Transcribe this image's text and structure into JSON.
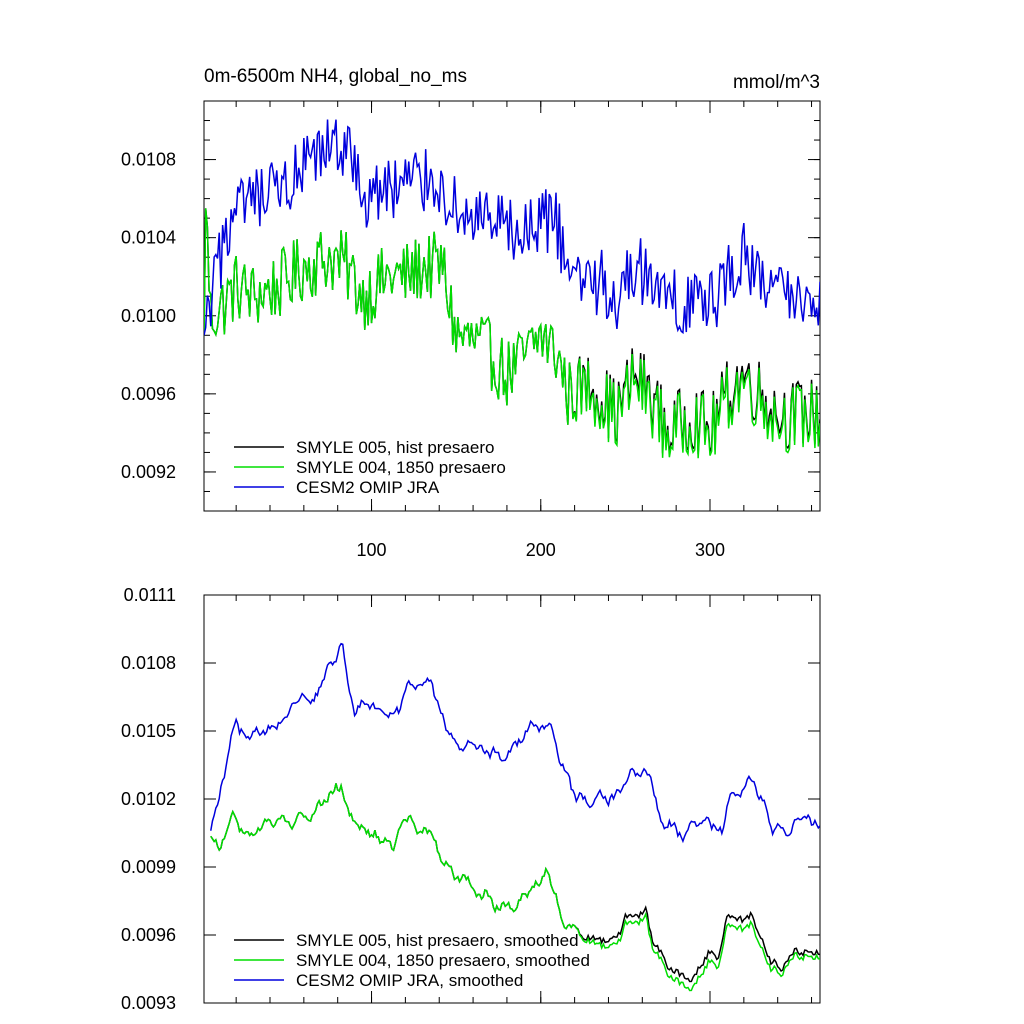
{
  "figure": {
    "panel_title_left": "0m-6500m NH4, global_no_ms",
    "panel_title_right": "mmol/m^3"
  },
  "colors": {
    "smyle005": "#000000",
    "smyle004": "#00dd00",
    "cesm2": "#0000dd"
  },
  "chart_data": [
    {
      "type": "line",
      "title": "0m-6500m NH4, global_no_ms",
      "units_label": "mmol/m^3",
      "xlim": [
        1,
        365
      ],
      "ylim": [
        0.009,
        0.0111
      ],
      "xticks": [
        100,
        200,
        300
      ],
      "xtick_labels": [
        "100",
        "200",
        "300"
      ],
      "yticks": [
        0.0092,
        0.0096,
        0.01,
        0.0104,
        0.0108
      ],
      "ytick_labels": [
        "0.0092",
        "0.0096",
        "0.0100",
        "0.0104",
        "0.0108"
      ],
      "legend_position": "bottom-left",
      "noise_amp": 0.00018,
      "series": [
        {
          "name": "SMYLE 005, hist presaero",
          "color": "#000000",
          "points": [
            [
              1,
              0.0099
            ],
            [
              2,
              0.01055
            ],
            [
              5,
              0.01
            ],
            [
              12,
              0.01005
            ],
            [
              20,
              0.01015
            ],
            [
              30,
              0.0101
            ],
            [
              45,
              0.01015
            ],
            [
              60,
              0.01025
            ],
            [
              75,
              0.0103
            ],
            [
              85,
              0.01025
            ],
            [
              95,
              0.0101
            ],
            [
              110,
              0.0102
            ],
            [
              120,
              0.0102
            ],
            [
              130,
              0.01025
            ],
            [
              142,
              0.01025
            ],
            [
              150,
              0.0099
            ],
            [
              165,
              0.00985
            ],
            [
              180,
              0.0097
            ],
            [
              192,
              0.0098
            ],
            [
              200,
              0.0099
            ],
            [
              210,
              0.0098
            ],
            [
              216,
              0.0096
            ],
            [
              230,
              0.00965
            ],
            [
              245,
              0.0095
            ],
            [
              255,
              0.0097
            ],
            [
              265,
              0.0096
            ],
            [
              275,
              0.0094
            ],
            [
              290,
              0.0095
            ],
            [
              300,
              0.0094
            ],
            [
              310,
              0.0096
            ],
            [
              320,
              0.0097
            ],
            [
              330,
              0.0096
            ],
            [
              340,
              0.0095
            ],
            [
              350,
              0.0095
            ],
            [
              365,
              0.0095
            ]
          ]
        },
        {
          "name": "SMYLE 004, 1850 presaero",
          "color": "#00dd00",
          "points": [
            [
              1,
              0.0099
            ],
            [
              2,
              0.01055
            ],
            [
              5,
              0.01
            ],
            [
              12,
              0.01005
            ],
            [
              20,
              0.01015
            ],
            [
              30,
              0.0101
            ],
            [
              45,
              0.01015
            ],
            [
              60,
              0.01025
            ],
            [
              75,
              0.0103
            ],
            [
              85,
              0.01025
            ],
            [
              95,
              0.0101
            ],
            [
              110,
              0.0102
            ],
            [
              120,
              0.0102
            ],
            [
              130,
              0.01025
            ],
            [
              142,
              0.01025
            ],
            [
              150,
              0.0099
            ],
            [
              165,
              0.00985
            ],
            [
              180,
              0.0097
            ],
            [
              192,
              0.0098
            ],
            [
              200,
              0.0099
            ],
            [
              210,
              0.0098
            ],
            [
              216,
              0.0096
            ],
            [
              230,
              0.00963
            ],
            [
              245,
              0.00948
            ],
            [
              255,
              0.00967
            ],
            [
              265,
              0.00957
            ],
            [
              275,
              0.00938
            ],
            [
              290,
              0.00948
            ],
            [
              300,
              0.00938
            ],
            [
              310,
              0.00957
            ],
            [
              320,
              0.00967
            ],
            [
              330,
              0.00957
            ],
            [
              340,
              0.00947
            ],
            [
              350,
              0.00948
            ],
            [
              365,
              0.00948
            ]
          ]
        },
        {
          "name": "CESM2 OMIP JRA",
          "color": "#0000dd",
          "points": [
            [
              1,
              0.0099
            ],
            [
              6,
              0.0101
            ],
            [
              15,
              0.01045
            ],
            [
              25,
              0.01055
            ],
            [
              40,
              0.0106
            ],
            [
              55,
              0.0107
            ],
            [
              70,
              0.0108
            ],
            [
              80,
              0.0109
            ],
            [
              88,
              0.0108
            ],
            [
              95,
              0.0106
            ],
            [
              110,
              0.01065
            ],
            [
              125,
              0.0107
            ],
            [
              138,
              0.0107
            ],
            [
              148,
              0.01055
            ],
            [
              160,
              0.0105
            ],
            [
              175,
              0.01045
            ],
            [
              190,
              0.0104
            ],
            [
              203,
              0.0105
            ],
            [
              210,
              0.01045
            ],
            [
              216,
              0.0102
            ],
            [
              230,
              0.0102
            ],
            [
              245,
              0.0101
            ],
            [
              255,
              0.01025
            ],
            [
              265,
              0.0102
            ],
            [
              275,
              0.01005
            ],
            [
              290,
              0.0101
            ],
            [
              300,
              0.01005
            ],
            [
              310,
              0.0102
            ],
            [
              320,
              0.0103
            ],
            [
              330,
              0.0102
            ],
            [
              340,
              0.0101
            ],
            [
              355,
              0.0101
            ],
            [
              365,
              0.0101
            ]
          ]
        }
      ]
    },
    {
      "type": "line",
      "title": "",
      "xlim": [
        1,
        365
      ],
      "ylim": [
        0.0093,
        0.0111
      ],
      "xticks": [
        100,
        200,
        300
      ],
      "yticks": [
        0.0093,
        0.0096,
        0.0099,
        0.0102,
        0.0105,
        0.0108,
        0.0111
      ],
      "ytick_labels": [
        "0.0093",
        "0.0096",
        "0.0099",
        "0.0102",
        "0.0105",
        "0.0108",
        "0.0111"
      ],
      "legend_position": "bottom-left",
      "noise_amp": 4e-05,
      "series": [
        {
          "name": "SMYLE 005, hist presaero, smoothed",
          "color": "#000000",
          "points": [
            [
              5,
              0.01005
            ],
            [
              10,
              0.00995
            ],
            [
              18,
              0.01015
            ],
            [
              25,
              0.01005
            ],
            [
              40,
              0.01008
            ],
            [
              55,
              0.01012
            ],
            [
              65,
              0.01015
            ],
            [
              75,
              0.01025
            ],
            [
              82,
              0.01025
            ],
            [
              90,
              0.0101
            ],
            [
              100,
              0.01005
            ],
            [
              112,
              0.01002
            ],
            [
              120,
              0.01008
            ],
            [
              135,
              0.01005
            ],
            [
              145,
              0.0099
            ],
            [
              160,
              0.0098
            ],
            [
              175,
              0.00975
            ],
            [
              185,
              0.00972
            ],
            [
              195,
              0.00985
            ],
            [
              204,
              0.00985
            ],
            [
              212,
              0.0097
            ],
            [
              220,
              0.0096
            ],
            [
              232,
              0.00958
            ],
            [
              245,
              0.0096
            ],
            [
              255,
              0.0097
            ],
            [
              262,
              0.0097
            ],
            [
              270,
              0.0095
            ],
            [
              285,
              0.0094
            ],
            [
              300,
              0.0095
            ],
            [
              305,
              0.0095
            ],
            [
              310,
              0.00965
            ],
            [
              322,
              0.00965
            ],
            [
              330,
              0.0096
            ],
            [
              337,
              0.00945
            ],
            [
              345,
              0.0095
            ],
            [
              355,
              0.00952
            ],
            [
              365,
              0.0095
            ]
          ]
        },
        {
          "name": "SMYLE 004, 1850 presaero, smoothed",
          "color": "#00dd00",
          "points": [
            [
              5,
              0.01005
            ],
            [
              10,
              0.00995
            ],
            [
              18,
              0.01015
            ],
            [
              25,
              0.01005
            ],
            [
              40,
              0.01008
            ],
            [
              55,
              0.01012
            ],
            [
              65,
              0.01015
            ],
            [
              75,
              0.01025
            ],
            [
              82,
              0.01025
            ],
            [
              90,
              0.0101
            ],
            [
              100,
              0.01005
            ],
            [
              112,
              0.01002
            ],
            [
              120,
              0.01008
            ],
            [
              135,
              0.01005
            ],
            [
              145,
              0.0099
            ],
            [
              160,
              0.0098
            ],
            [
              175,
              0.00975
            ],
            [
              185,
              0.00972
            ],
            [
              195,
              0.00985
            ],
            [
              204,
              0.00985
            ],
            [
              212,
              0.0097
            ],
            [
              220,
              0.0096
            ],
            [
              232,
              0.00956
            ],
            [
              245,
              0.00957
            ],
            [
              255,
              0.00967
            ],
            [
              262,
              0.00967
            ],
            [
              270,
              0.00947
            ],
            [
              285,
              0.00936
            ],
            [
              300,
              0.00946
            ],
            [
              305,
              0.00946
            ],
            [
              310,
              0.00961
            ],
            [
              322,
              0.00961
            ],
            [
              330,
              0.00956
            ],
            [
              337,
              0.00942
            ],
            [
              345,
              0.00948
            ],
            [
              355,
              0.0095
            ],
            [
              365,
              0.00948
            ]
          ]
        },
        {
          "name": "CESM2 OMIP JRA, smoothed",
          "color": "#0000dd",
          "points": [
            [
              5,
              0.01005
            ],
            [
              12,
              0.0103
            ],
            [
              20,
              0.01055
            ],
            [
              28,
              0.01045
            ],
            [
              40,
              0.0105
            ],
            [
              55,
              0.01062
            ],
            [
              65,
              0.01062
            ],
            [
              75,
              0.0108
            ],
            [
              83,
              0.01085
            ],
            [
              90,
              0.0106
            ],
            [
              100,
              0.0106
            ],
            [
              112,
              0.0106
            ],
            [
              125,
              0.01072
            ],
            [
              135,
              0.0107
            ],
            [
              145,
              0.0105
            ],
            [
              160,
              0.01045
            ],
            [
              175,
              0.0104
            ],
            [
              185,
              0.0104
            ],
            [
              195,
              0.01053
            ],
            [
              205,
              0.01055
            ],
            [
              212,
              0.0104
            ],
            [
              220,
              0.0102
            ],
            [
              232,
              0.0102
            ],
            [
              245,
              0.0102
            ],
            [
              255,
              0.0103
            ],
            [
              265,
              0.01028
            ],
            [
              272,
              0.0101
            ],
            [
              285,
              0.01005
            ],
            [
              300,
              0.0101
            ],
            [
              307,
              0.01005
            ],
            [
              312,
              0.01022
            ],
            [
              322,
              0.01028
            ],
            [
              330,
              0.0102
            ],
            [
              337,
              0.01005
            ],
            [
              345,
              0.01008
            ],
            [
              358,
              0.01012
            ],
            [
              365,
              0.01008
            ]
          ]
        }
      ]
    }
  ]
}
